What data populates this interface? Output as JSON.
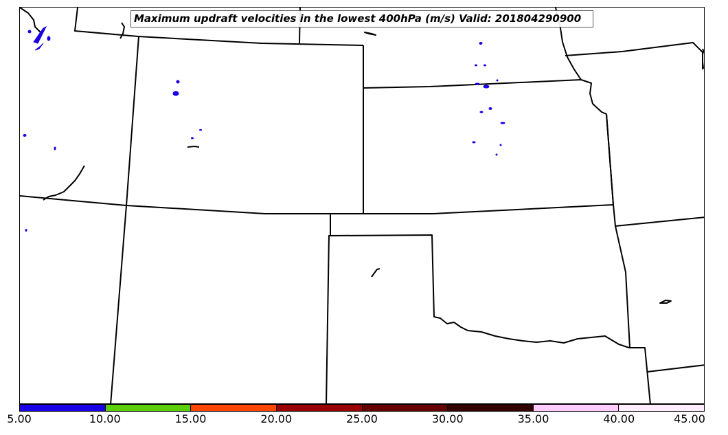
{
  "title": "Maximum updraft velocities in the lowest 400hPa (m/s) Valid: 201804290900",
  "colorbar": {
    "ticks": [
      "5.00",
      "10.00",
      "15.00",
      "20.00",
      "25.00",
      "30.00",
      "35.00",
      "40.00",
      "45.00"
    ],
    "colors": [
      "#1a00e6",
      "#5ccf0b",
      "#ff4500",
      "#990000",
      "#660000",
      "#330000",
      "#ffccff",
      "#ffeeff"
    ]
  },
  "map": {
    "boundary_color": "#000000",
    "updraft_fill": "#1a00e6"
  }
}
